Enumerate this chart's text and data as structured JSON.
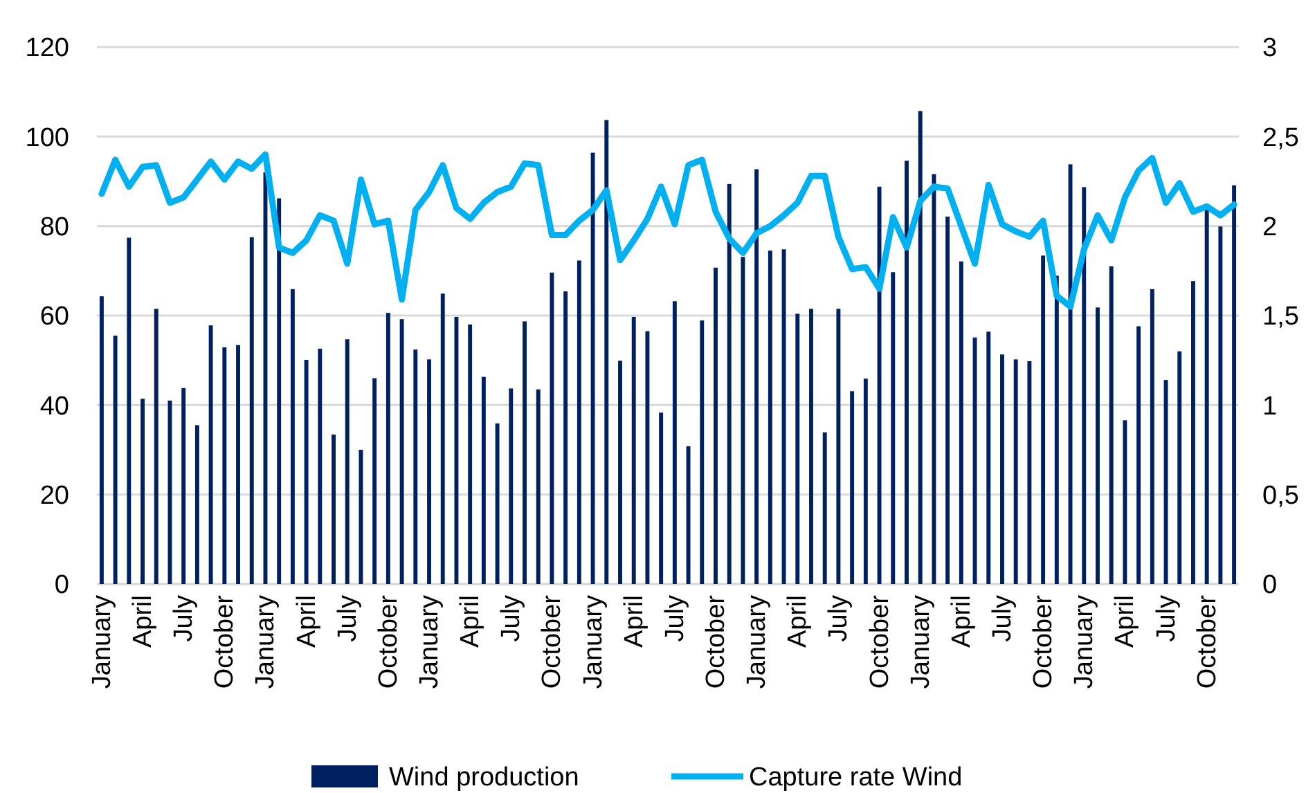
{
  "chart_data": {
    "type": "bar",
    "categories": [
      "January",
      null,
      null,
      "April",
      null,
      null,
      "July",
      null,
      null,
      "October",
      null,
      null,
      "January",
      null,
      null,
      "April",
      null,
      null,
      "July",
      null,
      null,
      "October",
      null,
      null,
      "January",
      null,
      null,
      "April",
      null,
      null,
      "July",
      null,
      null,
      "October",
      null,
      null,
      "January",
      null,
      null,
      "April",
      null,
      null,
      "July",
      null,
      null,
      "October",
      null,
      null,
      "January",
      null,
      null,
      "April",
      null,
      null,
      "July",
      null,
      null,
      "October",
      null,
      null,
      "January",
      null,
      null,
      "April",
      null,
      null,
      "July",
      null,
      null,
      "October",
      null,
      null,
      "January",
      null,
      null,
      "April",
      null,
      null,
      "July",
      null,
      null,
      "October",
      null,
      null
    ],
    "series": [
      {
        "name": "Wind production",
        "color": "#002060",
        "values": [
          64.3,
          55.5,
          77.4,
          41.4,
          61.5,
          41,
          43.8,
          35.5,
          57.8,
          52.9,
          53.4,
          77.5,
          92,
          86.2,
          65.9,
          50.1,
          52.6,
          33.4,
          54.7,
          30,
          46,
          60.6,
          59.2,
          52.4,
          50.2,
          64.9,
          59.7,
          58,
          46.3,
          35.9,
          43.7,
          58.7,
          43.5,
          69.6,
          65.4,
          72.3,
          96.4,
          103.7,
          49.9,
          59.7,
          56.5,
          38.3,
          63.2,
          30.8,
          58.9,
          70.7,
          89.4,
          73.1,
          92.7,
          74.5,
          74.8,
          60.4,
          61.5,
          33.9,
          61.5,
          43.1,
          45.9,
          88.8,
          69.7,
          94.6,
          105.7,
          91.6,
          82.1,
          72.1,
          55.1,
          56.4,
          51.3,
          50.2,
          49.8,
          73.4,
          68.9,
          93.8,
          88.7,
          61.8,
          71,
          36.6,
          57.6,
          65.9,
          45.6,
          52,
          67.7,
          84,
          79.9,
          89.1
        ]
      },
      {
        "name": "Capture rate Wind",
        "type": "line",
        "axis": "y2",
        "color": "#00b0f0",
        "values": [
          2.18,
          2.37,
          2.22,
          2.33,
          2.34,
          2.13,
          2.16,
          2.26,
          2.36,
          2.26,
          2.36,
          2.32,
          2.4,
          1.88,
          1.85,
          1.92,
          2.06,
          2.03,
          1.79,
          2.26,
          2.01,
          2.03,
          1.59,
          2.09,
          2.19,
          2.34,
          2.1,
          2.04,
          2.13,
          2.19,
          2.22,
          2.35,
          2.34,
          1.95,
          1.95,
          2.03,
          2.09,
          2.2,
          1.81,
          1.92,
          2.04,
          2.22,
          2.01,
          2.34,
          2.37,
          2.08,
          1.93,
          1.85,
          1.96,
          2,
          2.06,
          2.13,
          2.28,
          2.28,
          1.94,
          1.76,
          1.77,
          1.65,
          2.05,
          1.88,
          2.14,
          2.22,
          2.21,
          2,
          1.79,
          2.23,
          2.01,
          1.97,
          1.94,
          2.03,
          1.61,
          1.55,
          1.87,
          2.06,
          1.92,
          2.16,
          2.31,
          2.38,
          2.13,
          2.24,
          2.08,
          2.11,
          2.06,
          2.12
        ]
      }
    ],
    "ylim": [
      0,
      120
    ],
    "yticks": [
      0,
      20,
      40,
      60,
      80,
      100,
      120
    ],
    "y2lim": [
      0,
      3
    ],
    "y2ticks": [
      0,
      {
        "value": 0.5,
        "label": "0,5"
      },
      1,
      {
        "value": 1.5,
        "label": "1,5"
      },
      2,
      {
        "value": 2.5,
        "label": "2,5"
      },
      3
    ],
    "grid": "y",
    "legend": "bottom"
  }
}
